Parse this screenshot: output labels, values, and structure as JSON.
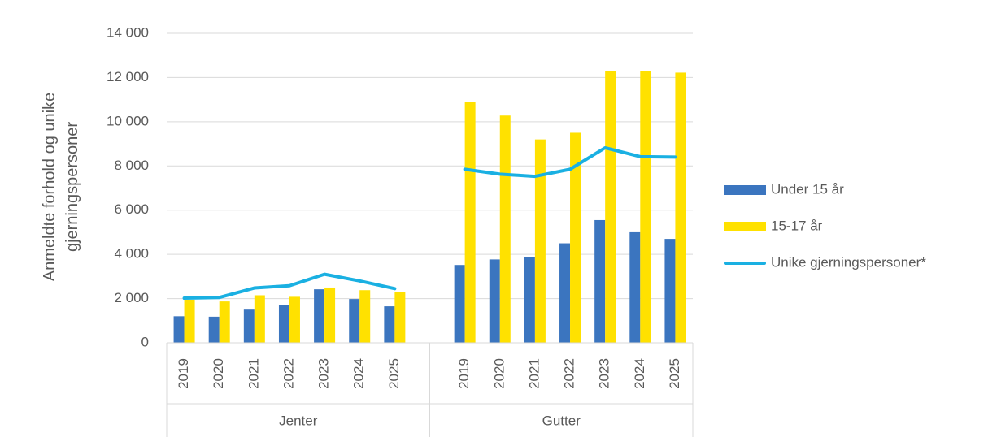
{
  "chart_data": {
    "type": "bar_line",
    "y_label": [
      "Anmeldte forhold og unike",
      "gjerningspersoner"
    ],
    "categories": [
      "2019",
      "2020",
      "2021",
      "2022",
      "2023",
      "2024",
      "2025",
      null,
      "2019",
      "2020",
      "2021",
      "2022",
      "2023",
      "2024",
      "2025"
    ],
    "groups": [
      "Jenter",
      "Gutter"
    ],
    "series": [
      {
        "name": "Under 15 år",
        "color": "#3b75bf",
        "kind": "bar",
        "values": [
          1200,
          1180,
          1500,
          1700,
          2420,
          1980,
          1650,
          null,
          3520,
          3770,
          3870,
          4500,
          5550,
          5000,
          4700
        ]
      },
      {
        "name": "15-17 år",
        "color": "#ffe100",
        "kind": "bar",
        "values": [
          1950,
          1870,
          2150,
          2080,
          2500,
          2380,
          2300,
          null,
          10880,
          10280,
          9200,
          9500,
          12300,
          12300,
          12220
        ]
      },
      {
        "name": "Unike gjerningspersoner*",
        "color": "#1ab0e2",
        "kind": "line",
        "values": [
          2020,
          2050,
          2480,
          2580,
          3100,
          2800,
          2450,
          null,
          7850,
          7630,
          7530,
          7850,
          8820,
          8420,
          8400
        ]
      }
    ],
    "ylim": [
      0,
      14000
    ],
    "yticks": [
      0,
      {
        "value": 2000,
        "label": "2 000"
      },
      {
        "value": 4000,
        "label": "4 000"
      },
      {
        "value": 6000,
        "label": "6 000"
      },
      {
        "value": 8000,
        "label": "8 000"
      },
      {
        "value": 10000,
        "label": "10 000"
      },
      {
        "value": 12000,
        "label": "12 000"
      },
      {
        "value": 14000,
        "label": "14 000"
      }
    ],
    "grid": true,
    "legend": "right"
  }
}
